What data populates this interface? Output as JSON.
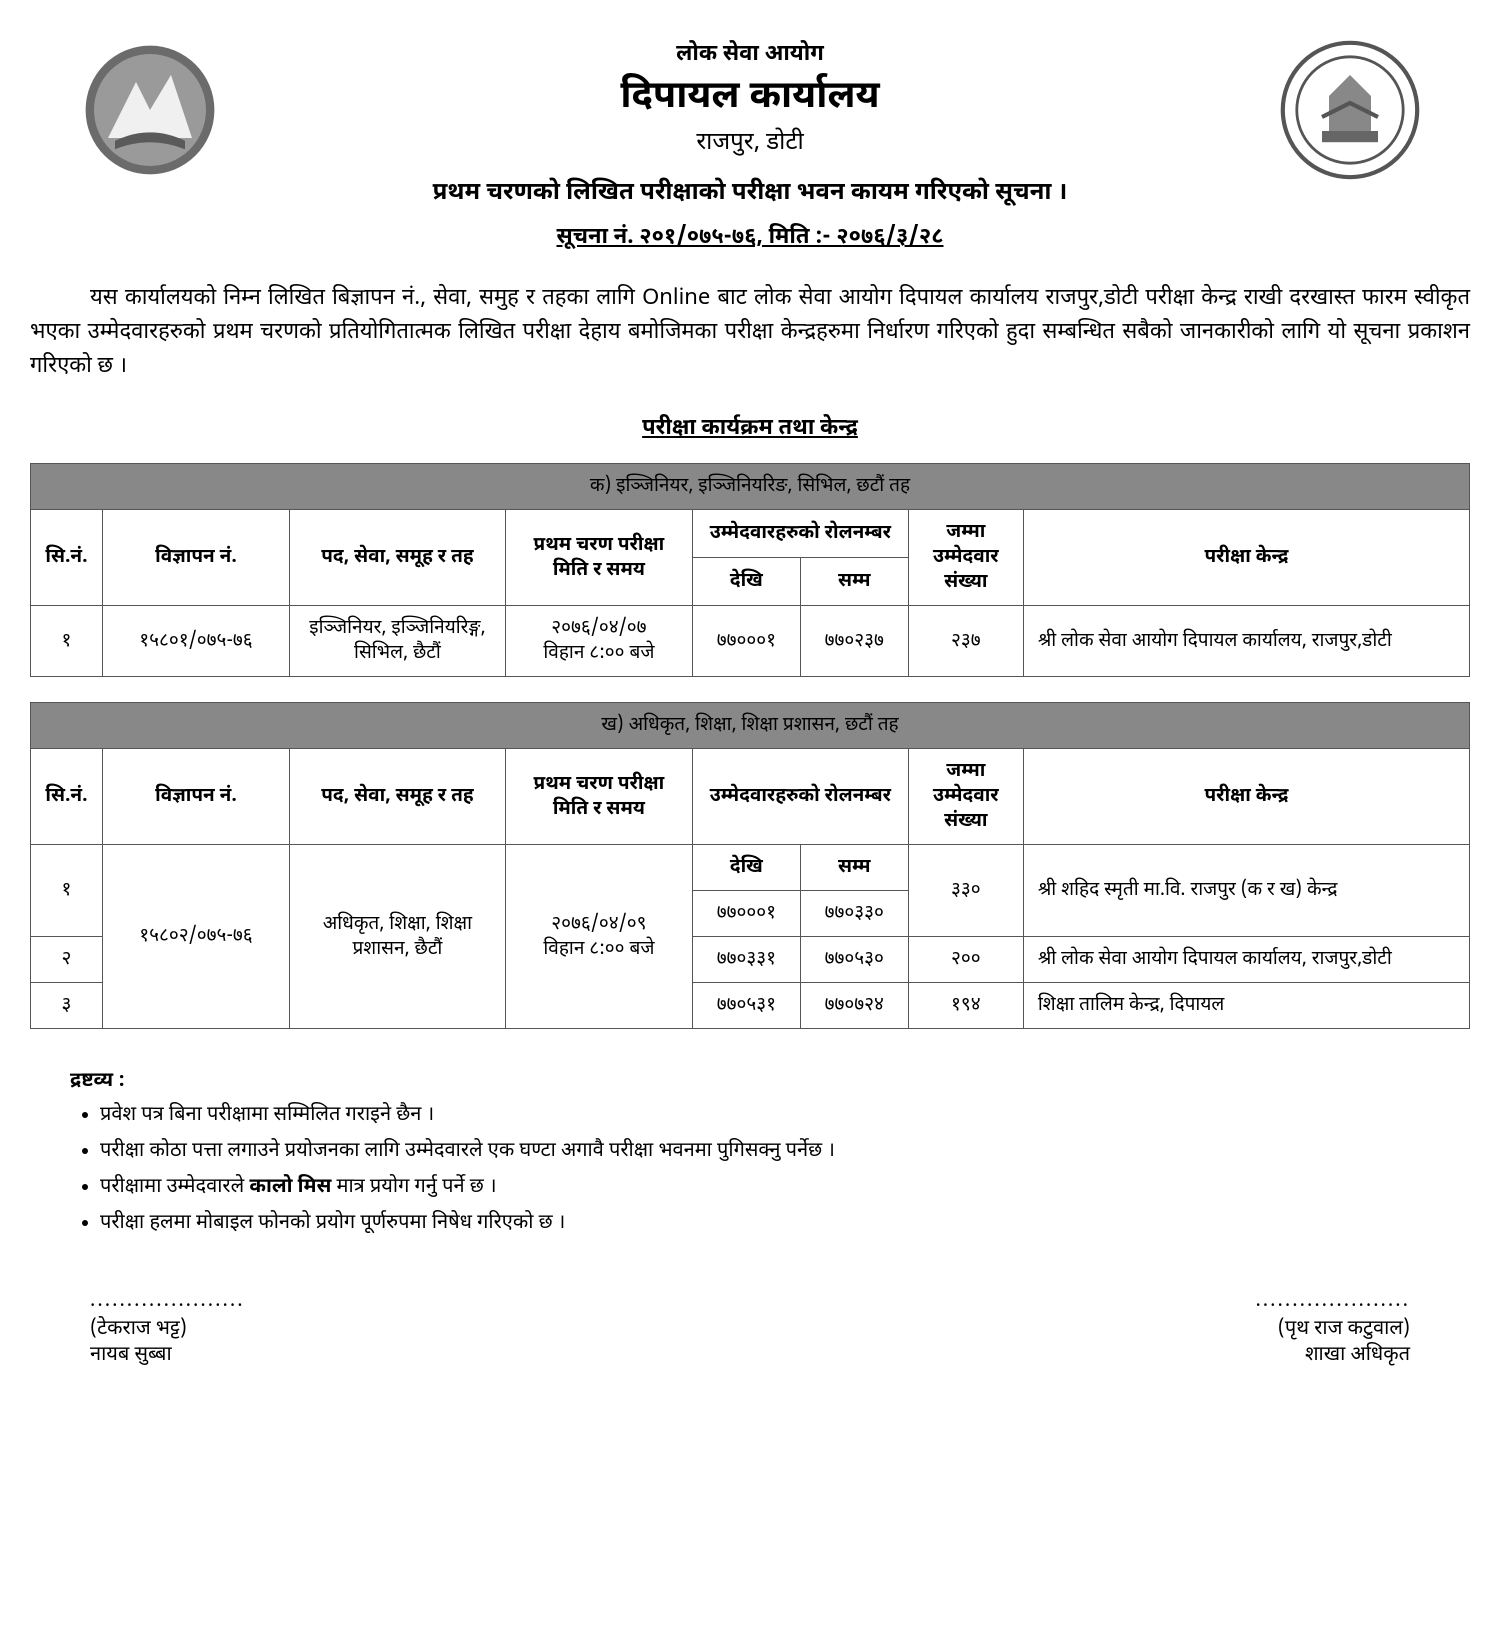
{
  "header": {
    "org_name": "लोक सेवा आयोग",
    "office_name": "दिपायल कार्यालय",
    "location": "राजपुर, डोटी",
    "subject": "प्रथम चरणको लिखित परीक्षाको परीक्षा भवन कायम गरिएको सूचना ।",
    "notice_no": "सूचना नं. २०१/०७५-७६,    मिति :- २०७६/३/२८"
  },
  "body_para": "यस कार्यालयको निम्न लिखित बिज्ञापन नं., सेवा, समुह र तहका लागि Online बाट लोक सेवा आयोग दिपायल कार्यालय राजपुर,डोटी परीक्षा केन्द्र राखी दरखास्त फारम स्वीकृत भएका उम्मेदवारहरुको प्रथम चरणको प्रतियोगितात्मक लिखित परीक्षा देहाय बमोजिमका परीक्षा केन्द्रहरुमा निर्धारण गरिएको हुदा सम्बन्धित सबैको जानकारीको लागि यो सूचना प्रकाशन गरिएको छ ।",
  "section_heading": "परीक्षा कार्यक्रम तथा केन्द्र",
  "cols": {
    "sn": "सि.नं.",
    "ad_no": "विज्ञापन नं.",
    "post": "पद, सेवा, समूह र तह",
    "datetime": "प्रथम चरण परीक्षा मिति र समय",
    "roll": "उम्मेदवारहरुको रोलनम्बर",
    "from": "देखि",
    "to": "सम्म",
    "total": "जम्मा उम्मेदवार संख्या",
    "center": "परीक्षा केन्द्र"
  },
  "group_a": {
    "title": "क) इञ्जिनियर, इञ्जिनियरिङ, सिभिल, छटौं तह",
    "rows": [
      {
        "sn": "१",
        "ad_no": "१५८०१/०७५-७६",
        "post": "इञ्जिनियर, इञ्जिनियरिङ्ग, सिभिल, छैटौं",
        "datetime": "२०७६/०४/०७\nविहान ८:०० बजे",
        "from": "७७०००१",
        "to": "७७०२३७",
        "total": "२३७",
        "center": "श्री लोक सेवा आयोग दिपायल कार्यालय, राजपुर,डोटी"
      }
    ]
  },
  "group_b": {
    "title": "ख)  अधिकृत, शिक्षा, शिक्षा प्रशासन, छटौं तह",
    "ad_no": "१५८०२/०७५-७६",
    "post": "अधिकृत, शिक्षा, शिक्षा प्रशासन, छैटौं",
    "datetime": "२०७६/०४/०९\nविहान ८:०० बजे",
    "sub_from": "देखि",
    "sub_to": "सम्म",
    "rows": [
      {
        "sn": "१",
        "from": "७७०००१",
        "to": "७७०३३०",
        "total": "३३०",
        "center": "श्री शहिद स्मृती मा.वि. राजपुर (क र ख) केन्द्र"
      },
      {
        "sn": "२",
        "from": "७७०३३१",
        "to": "७७०५३०",
        "total": "२००",
        "center": "श्री लोक सेवा आयोग दिपायल कार्यालय, राजपुर,डोटी"
      },
      {
        "sn": "३",
        "from": "७७०५३१",
        "to": "७७०७२४",
        "total": "१९४",
        "center": "शिक्षा तालिम केन्द्र, दिपायल"
      }
    ]
  },
  "notes": {
    "label": "द्रष्टव्य :",
    "items": [
      "प्रवेश पत्र बिना परीक्षामा सम्मिलित गराइने छैन ।",
      "परीक्षा कोठा पत्ता लगाउने प्रयोजनका लागि उम्मेदवारले एक घण्टा अगावै परीक्षा भवनमा पुगिसक्नु पर्नेछ ।",
      "परीक्षामा उम्मेदवारले <b>कालो मिस</b> मात्र प्रयोग गर्नु पर्ने छ ।",
      "परीक्षा हलमा मोबाइल फोनको प्रयोग पूर्णरुपमा निषेध गरिएको छ ।"
    ]
  },
  "signatures": {
    "left_name": "(टेकराज भट्ट)",
    "left_post": "नायब सुब्बा",
    "right_name": "(पृथ राज कटुवाल)",
    "right_post": "शाखा अधिकृत"
  },
  "style": {
    "page_bg": "#ffffff",
    "text_color": "#000000",
    "table_border": "#555555",
    "group_header_bg": "#888888",
    "font_body": 22,
    "font_table": 19
  }
}
